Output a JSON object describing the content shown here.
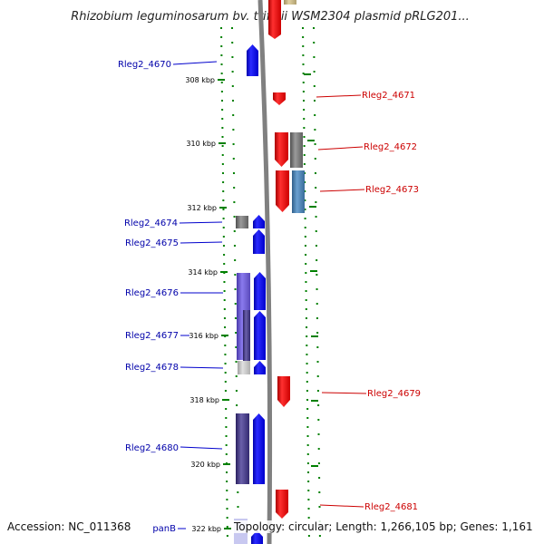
{
  "title": "Rhizobium leguminosarum bv. trifolii WSM2304 plasmid pRLG201...",
  "footer": {
    "accession": "Accession: NC_011368",
    "topology": "Topology: circular; Length: 1,266,105 bp; Genes: 1,161"
  },
  "scale_labels": [
    "308 kbp",
    "310 kbp",
    "312 kbp",
    "314 kbp",
    "316 kbp",
    "318 kbp",
    "320 kbp",
    "322 kbp"
  ],
  "left_genes": [
    "Rleg2_4670",
    "Rleg2_4674",
    "Rleg2_4675",
    "Rleg2_4676",
    "Rleg2_4677",
    "Rleg2_4678",
    "Rleg2_4680",
    "panB"
  ],
  "right_genes": [
    "Rleg2_4671",
    "Rleg2_4672",
    "Rleg2_4673",
    "Rleg2_4679",
    "Rleg2_4681"
  ],
  "colors": {
    "forward_strand": "#ff0000",
    "reverse_strand": "#0000ff",
    "cog_gray": "#808080",
    "cog_steelblue": "#4682b4",
    "cog_slate": "#6a5acd",
    "cog_navy": "#1a1a8a",
    "cog_darkslate": "#483d8b",
    "dotted_track": "#008000",
    "backbone": "#808080"
  }
}
